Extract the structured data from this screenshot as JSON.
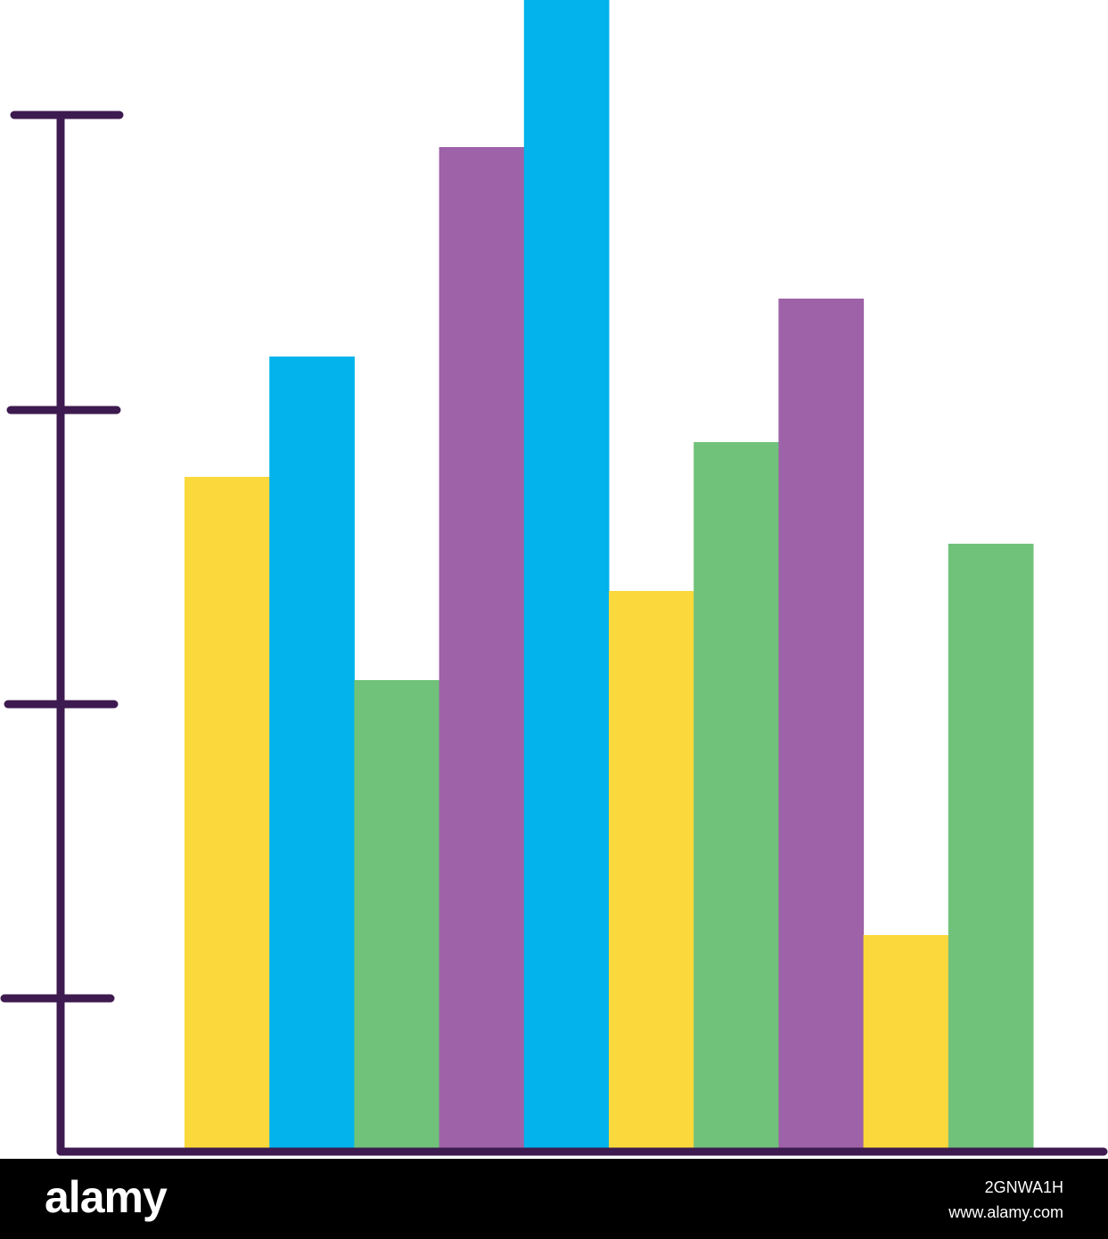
{
  "chart_data": {
    "type": "bar",
    "categories": [
      null,
      null,
      null,
      null,
      null,
      null,
      null,
      null,
      null,
      null
    ],
    "values": [
      755,
      890,
      527,
      1125,
      1290,
      627,
      794,
      955,
      241,
      680
    ],
    "colors": [
      "#fbd93c",
      "#02b3ec",
      "#70c27a",
      "#9d62a8",
      "#02b3ec",
      "#fbd93c",
      "#70c27a",
      "#9d62a8",
      "#fbd93c",
      "#70c27a"
    ],
    "ylim": [
      0,
      1290
    ]
  },
  "watermark": {
    "logo": "alamy",
    "image_id": "2GNWA1H",
    "site": "www.alamy.com"
  }
}
